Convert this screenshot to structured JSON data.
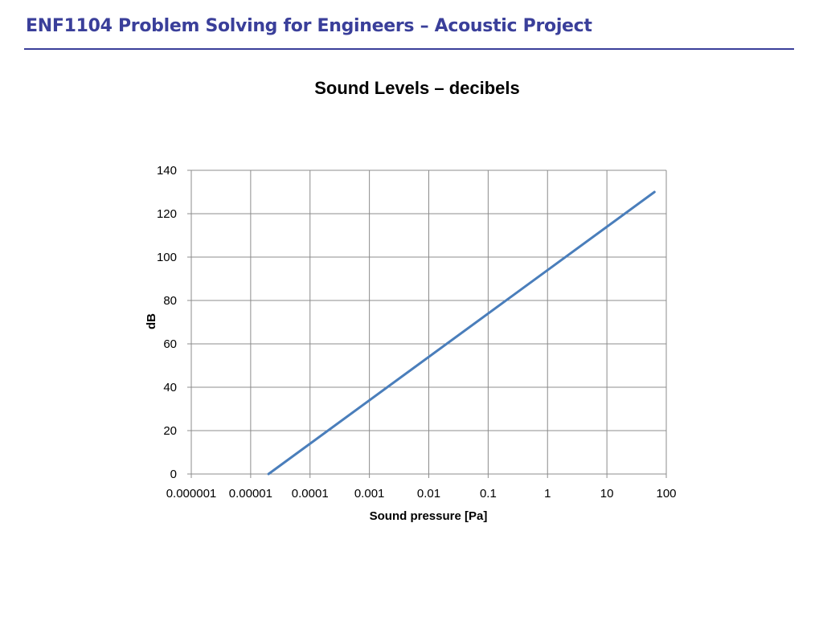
{
  "slide": {
    "title": "ENF1104 Problem Solving for Engineers – Acoustic Project",
    "title_color": "#3a3f9a"
  },
  "chart_data": {
    "type": "line",
    "title": "Sound Levels – decibels",
    "xlabel": "Sound pressure [Pa]",
    "ylabel": "dB",
    "x_scale": "log",
    "xlim": [
      1e-06,
      100
    ],
    "ylim": [
      0,
      140
    ],
    "x_ticks": [
      "0.000001",
      "0.00001",
      "0.0001",
      "0.001",
      "0.01",
      "0.1",
      "1",
      "10",
      "100"
    ],
    "y_ticks": [
      "0",
      "20",
      "40",
      "60",
      "80",
      "100",
      "120",
      "140"
    ],
    "grid": true,
    "legend": "none",
    "series_color": "#4a7ebb",
    "series": [
      {
        "points": [
          {
            "x": 2e-05,
            "y": 0
          },
          {
            "x": 63.2,
            "y": 130
          }
        ]
      }
    ]
  }
}
